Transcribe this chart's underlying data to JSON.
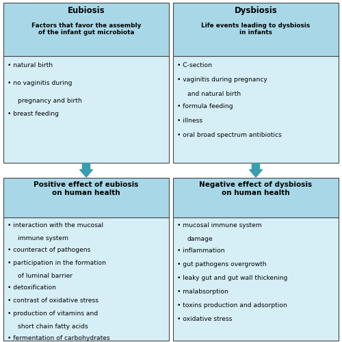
{
  "header_bg": "#a8d8e8",
  "body_bg": "#d6eff7",
  "border_color": "#444444",
  "arrow_color": "#3a9db0",
  "fig_bg": "#ffffff",
  "top_left_title": "Eubiosis",
  "top_left_subtitle": "Factors that favor the assembly\nof the infant gut microbiota",
  "top_left_items": [
    "natural birth",
    "no vaginitis during\n  pregnancy and birth",
    "breast feeding"
  ],
  "top_right_title": "Dysbiosis",
  "top_right_subtitle": "Life events leading to dysbiosis\nin infants",
  "top_right_items": [
    "C-section",
    "vaginitis during pregnancy\n  and natural birth",
    "formula feeding",
    "illness",
    "oral broad spectrum antibiotics"
  ],
  "bottom_left_title": "Positive effect of eubiosis\non human health",
  "bottom_left_items": [
    "interaction with the mucosal\n  immune system",
    "counteract of pathogens",
    "participation in the formation\n  of luminal barrier",
    "detoxification",
    "contrast of oxidative stress",
    "production of vitamins and\n  short chain fatty acids",
    "fermentation of carbohydrates"
  ],
  "bottom_right_title": "Negative effect of dysbiosis\non human health",
  "bottom_right_items": [
    "mucosal immune system\n  damage",
    "inflammation",
    "gut pathogens overgrowth",
    "leaky gut and gut wall thickening",
    "malabsorption",
    "toxins production and adsorption",
    "oxidative stress"
  ]
}
